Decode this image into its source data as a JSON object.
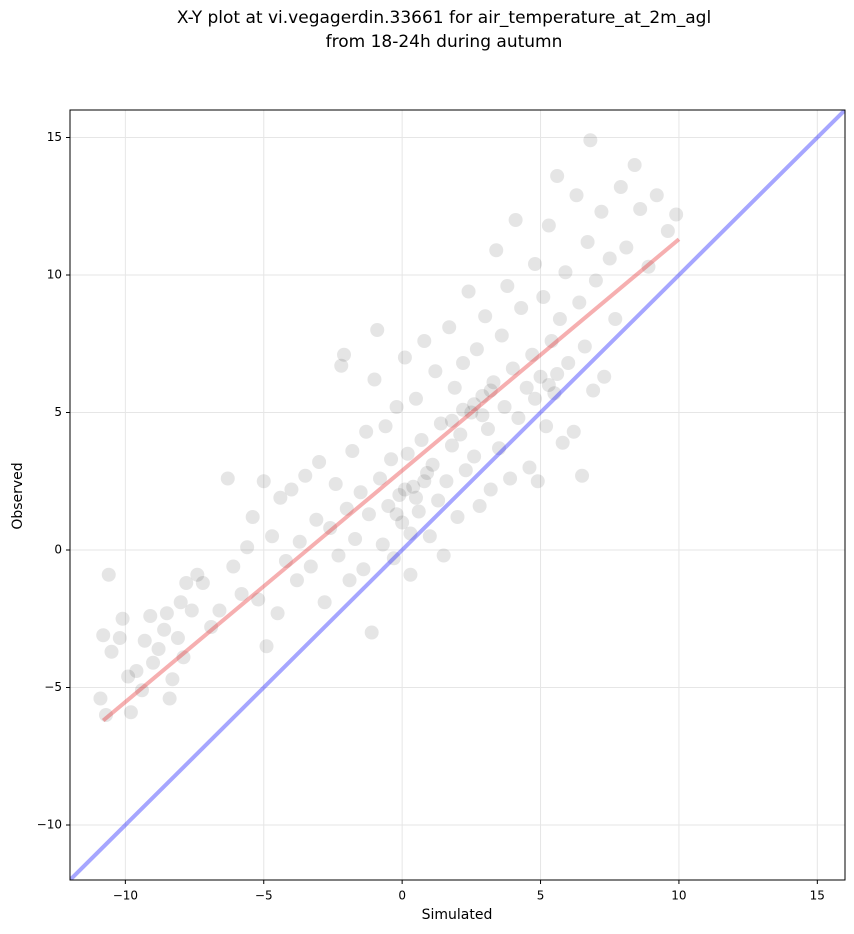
{
  "chart_data": {
    "type": "scatter",
    "title_lines": [
      "X-Y plot at vi.vegagerdin.33661 for air_temperature_at_2m_agl",
      "from 18-24h during autumn"
    ],
    "x_label": "Simulated",
    "y_label": "Observed",
    "xlim": [
      -12,
      16
    ],
    "ylim": [
      -12,
      16
    ],
    "xticks": [
      {
        "value": -10,
        "label": "−10"
      },
      {
        "value": -5,
        "label": "−5"
      },
      0,
      5,
      10,
      15
    ],
    "yticks": [
      {
        "value": -10,
        "label": "−10"
      },
      {
        "value": -5,
        "label": "−5"
      },
      0,
      5,
      10,
      15
    ],
    "grid": true,
    "color": "#000000",
    "alpha": 0.1,
    "x": [
      -10.9,
      -10.8,
      -10.7,
      -10.6,
      -10.5,
      -10.2,
      -10.1,
      -9.9,
      -9.8,
      -9.6,
      -9.4,
      -9.3,
      -9.1,
      -9.0,
      -8.8,
      -8.6,
      -8.5,
      -8.4,
      -8.3,
      -8.1,
      -8.0,
      -7.9,
      -7.8,
      -7.6,
      -7.4,
      -7.2,
      -6.9,
      -6.6,
      -6.3,
      -6.1,
      -5.8,
      -5.6,
      -5.4,
      -5.2,
      -5.0,
      -4.9,
      -4.7,
      -4.5,
      -4.4,
      -4.2,
      -4.0,
      -3.8,
      -3.7,
      -3.5,
      -3.3,
      -3.1,
      -3.0,
      -2.8,
      -2.6,
      -2.4,
      -2.3,
      -2.2,
      -2.1,
      -2.0,
      -1.9,
      -1.8,
      -1.7,
      -1.5,
      -1.4,
      -1.3,
      -1.2,
      -1.1,
      -1.0,
      -0.9,
      -0.8,
      -0.7,
      -0.6,
      -0.5,
      -0.4,
      -0.3,
      -0.2,
      -0.2,
      -0.1,
      0.0,
      0.1,
      0.1,
      0.2,
      0.3,
      0.3,
      0.4,
      0.5,
      0.5,
      0.6,
      0.7,
      0.8,
      0.8,
      0.9,
      1.0,
      1.1,
      1.2,
      1.3,
      1.4,
      1.5,
      1.6,
      1.7,
      1.8,
      1.8,
      1.9,
      2.0,
      2.1,
      2.2,
      2.2,
      2.3,
      2.4,
      2.5,
      2.6,
      2.6,
      2.7,
      2.8,
      2.9,
      2.9,
      3.0,
      3.1,
      3.2,
      3.2,
      3.3,
      3.4,
      3.5,
      3.6,
      3.7,
      3.8,
      3.9,
      4.0,
      4.1,
      4.2,
      4.3,
      4.5,
      4.6,
      4.7,
      4.8,
      4.8,
      4.9,
      5.0,
      5.1,
      5.2,
      5.3,
      5.3,
      5.4,
      5.5,
      5.6,
      5.6,
      5.7,
      5.8,
      5.9,
      6.0,
      6.2,
      6.3,
      6.4,
      6.5,
      6.6,
      6.7,
      6.8,
      6.9,
      7.0,
      7.2,
      7.3,
      7.5,
      7.7,
      7.9,
      8.1,
      8.4,
      8.6,
      8.9,
      9.2,
      9.6,
      9.9
    ],
    "y": [
      -5.4,
      -3.1,
      -6.0,
      -0.9,
      -3.7,
      -3.2,
      -2.5,
      -4.6,
      -5.9,
      -4.4,
      -5.1,
      -3.3,
      -2.4,
      -4.1,
      -3.6,
      -2.9,
      -2.3,
      -5.4,
      -4.7,
      -3.2,
      -1.9,
      -3.9,
      -1.2,
      -2.2,
      -0.9,
      -1.2,
      -2.8,
      -2.2,
      2.6,
      -0.6,
      -1.6,
      0.1,
      1.2,
      -1.8,
      2.5,
      -3.5,
      0.5,
      -2.3,
      1.9,
      -0.4,
      2.2,
      -1.1,
      0.3,
      2.7,
      -0.6,
      1.1,
      3.2,
      -1.9,
      0.8,
      2.4,
      -0.2,
      6.7,
      7.1,
      1.5,
      -1.1,
      3.6,
      0.4,
      2.1,
      -0.7,
      4.3,
      1.3,
      -3.0,
      6.2,
      8.0,
      2.6,
      0.2,
      4.5,
      1.6,
      3.3,
      -0.3,
      5.2,
      1.3,
      2.0,
      1.0,
      7.0,
      2.2,
      3.5,
      0.6,
      -0.9,
      2.3,
      5.5,
      1.9,
      1.4,
      4.0,
      7.6,
      2.5,
      2.8,
      0.5,
      3.1,
      6.5,
      1.8,
      4.6,
      -0.2,
      2.5,
      8.1,
      3.8,
      4.7,
      5.9,
      1.2,
      4.2,
      6.8,
      5.1,
      2.9,
      9.4,
      5.0,
      3.4,
      5.3,
      7.3,
      1.6,
      5.6,
      4.9,
      8.5,
      4.4,
      2.2,
      5.8,
      6.1,
      10.9,
      3.7,
      7.8,
      5.2,
      9.6,
      2.6,
      6.6,
      12.0,
      4.8,
      8.8,
      5.9,
      3.0,
      7.1,
      10.4,
      5.5,
      2.5,
      6.3,
      9.2,
      4.5,
      11.8,
      6.0,
      7.6,
      5.7,
      13.6,
      6.4,
      8.4,
      3.9,
      10.1,
      6.8,
      4.3,
      12.9,
      9.0,
      2.7,
      7.4,
      11.2,
      14.9,
      5.8,
      9.8,
      12.3,
      6.3,
      10.6,
      8.4,
      13.2,
      11.0,
      14.0,
      12.4,
      10.3,
      12.9,
      11.6,
      12.2
    ],
    "lines": [
      {
        "color": "#0000ff",
        "x": [
          -12,
          16
        ],
        "y": [
          -12,
          16
        ]
      },
      {
        "color": "#e41a1c",
        "x": [
          -10.8,
          10
        ],
        "y": [
          -6.2,
          11.3
        ]
      }
    ]
  }
}
